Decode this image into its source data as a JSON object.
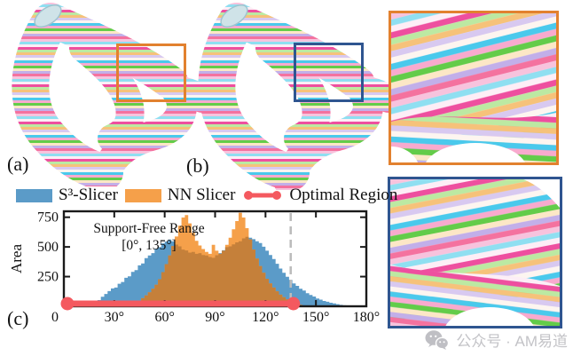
{
  "figure": {
    "panel_a_label": "(a)",
    "panel_b_label": "(b)",
    "panel_c_label": "(c)"
  },
  "legend": {
    "items": [
      {
        "label": "S³-Slicer",
        "color": "#5b9bc8",
        "swatch": "box"
      },
      {
        "label": "NN Slicer",
        "color": "#f5a04a",
        "swatch": "box"
      },
      {
        "label": "Optimal Region",
        "color": "#f4595f",
        "swatch": "line-with-dots"
      }
    ]
  },
  "colors": {
    "inset_a_border": "#e2812f",
    "inset_b_border": "#2f5590",
    "axis": "#1a1a1a",
    "dashed_line": "#bcbcbc",
    "overlap": "#c5803a",
    "watermark": "#c3c3c7"
  },
  "chart_data": {
    "type": "bar",
    "subtype": "overlaid-histogram",
    "title": "",
    "xlabel": "",
    "ylabel": "Area",
    "xlim": [
      0,
      180
    ],
    "ylim": [
      0,
      800
    ],
    "grid": false,
    "legend_position": "top",
    "bin_width_deg": 2,
    "xticks": [
      {
        "value": 0,
        "label": "0"
      },
      {
        "value": 30,
        "label": "30°"
      },
      {
        "value": 60,
        "label": "60°"
      },
      {
        "value": 90,
        "label": "90°"
      },
      {
        "value": 120,
        "label": "120°"
      },
      {
        "value": 150,
        "label": "150°"
      },
      {
        "value": 180,
        "label": "180°"
      }
    ],
    "yticks": [
      {
        "value": 0,
        "label": "0"
      },
      {
        "value": 250,
        "label": "250"
      },
      {
        "value": 500,
        "label": "500"
      },
      {
        "value": 750,
        "label": "750"
      }
    ],
    "annotation": {
      "line1": "Support-Free Range",
      "line2": "[0°, 135°]"
    },
    "support_free_range_deg": [
      0,
      135
    ],
    "dashed_marker_x": 135,
    "optimal_region": {
      "start": 0,
      "end": 135,
      "color": "#f4595f"
    },
    "series": [
      {
        "name": "S³-Slicer",
        "color": "#5b9bc8",
        "values": [
          0,
          0,
          0,
          0,
          0,
          0,
          5,
          12,
          22,
          38,
          52,
          80,
          104,
          128,
          150,
          158,
          190,
          205,
          240,
          252,
          290,
          305,
          345,
          360,
          405,
          428,
          448,
          485,
          498,
          530,
          545,
          562,
          548,
          520,
          505,
          478,
          470,
          452,
          458,
          442,
          448,
          432,
          428,
          415,
          408,
          430,
          448,
          472,
          498,
          505,
          522,
          538,
          548,
          572,
          585,
          578,
          565,
          548,
          532,
          502,
          468,
          432,
          398,
          358,
          318,
          282,
          248,
          222,
          192,
          172,
          148,
          132,
          110,
          95,
          82,
          66,
          56,
          45,
          38,
          30,
          24,
          18,
          12,
          8,
          5,
          3,
          0,
          0,
          0,
          0
        ]
      },
      {
        "name": "NN Slicer",
        "color": "#f5a04a",
        "values": [
          0,
          0,
          0,
          0,
          0,
          0,
          0,
          0,
          0,
          0,
          0,
          0,
          0,
          0,
          0,
          0,
          0,
          0,
          0,
          0,
          12,
          28,
          48,
          68,
          92,
          118,
          148,
          182,
          228,
          288,
          355,
          428,
          508,
          588,
          678,
          748,
          768,
          698,
          618,
          552,
          512,
          482,
          458,
          442,
          518,
          468,
          442,
          468,
          518,
          578,
          648,
          718,
          788,
          748,
          658,
          562,
          478,
          402,
          338,
          282,
          232,
          192,
          158,
          126,
          98,
          76,
          58,
          44,
          32,
          22,
          12,
          0,
          0,
          0,
          0,
          0,
          0,
          0,
          0,
          0,
          0,
          0,
          0,
          0,
          0,
          0,
          0,
          0,
          0,
          0
        ]
      }
    ]
  },
  "watermark": {
    "icon": "wechat-icon",
    "text": "公众号 · AM易道"
  }
}
